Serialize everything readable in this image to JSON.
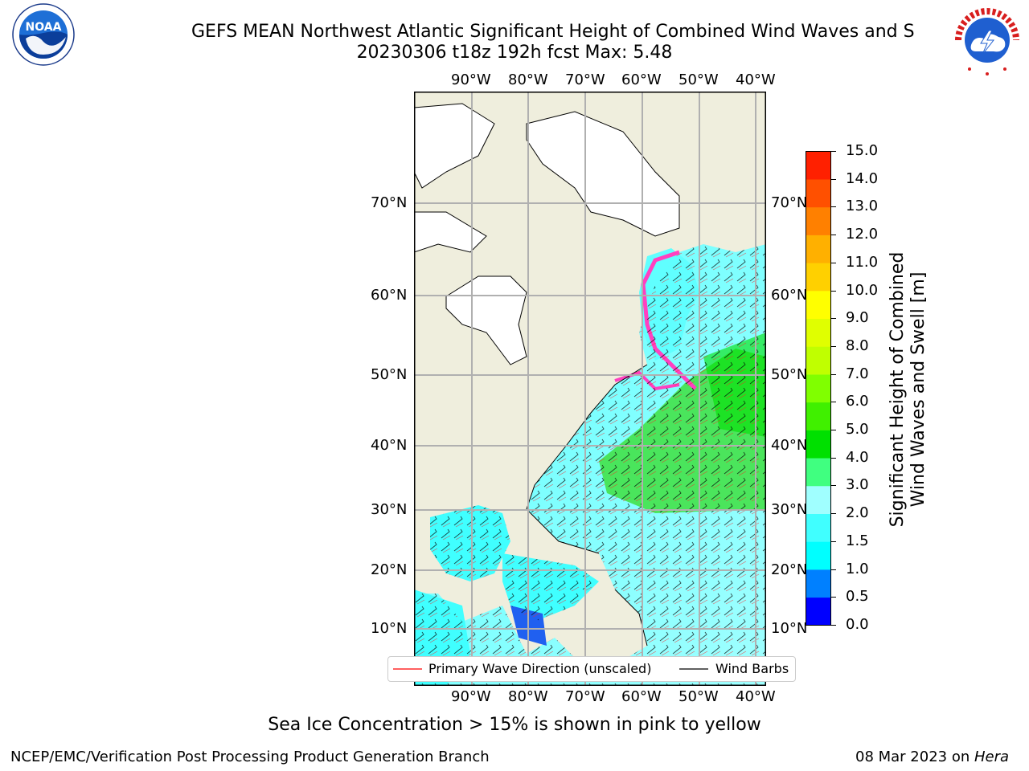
{
  "title_line1": "GEFS MEAN Northwest Atlantic Significant Height of Combined Wind Waves and S",
  "title_line2": "20230306 t18z 192h fcst   Max: 5.48",
  "logos": {
    "noaa_text": "NOAA",
    "noaa_ring": "NATIONAL OCEANIC AND ATMOSPHERIC ADMINISTRATION · U.S. DEPARTMENT OF COMMERCE",
    "nws_ring": "NATIONAL WEATHER SERVICE"
  },
  "lon_ticks": [
    "90°W",
    "80°W",
    "70°W",
    "60°W",
    "50°W",
    "40°W"
  ],
  "lat_ticks": [
    "70°N",
    "60°N",
    "50°N",
    "40°N",
    "30°N",
    "20°N",
    "10°N"
  ],
  "colorbar": {
    "label_line1": "Significant Height of Combined",
    "label_line2": "Wind Waves and Swell [m]",
    "ticks": [
      "15.0",
      "14.0",
      "13.0",
      "12.0",
      "11.0",
      "10.0",
      "9.0",
      "8.0",
      "7.0",
      "6.0",
      "5.0",
      "4.0",
      "3.0",
      "2.0",
      "1.5",
      "1.0",
      "0.5",
      "0.0"
    ],
    "colors_bottom_to_top": [
      "#0000ff",
      "#0080ff",
      "#00ffff",
      "#40ffff",
      "#a0ffff",
      "#40ff80",
      "#00e000",
      "#40f000",
      "#80ff00",
      "#c0ff00",
      "#e0ff00",
      "#ffff00",
      "#ffd000",
      "#ffb000",
      "#ff8000",
      "#ff5000",
      "#ff2000"
    ]
  },
  "legend": {
    "wave_label": "Primary Wave Direction (unscaled)",
    "wind_label": "Wind Barbs",
    "wave_color": "#ff0000",
    "wind_color": "#000000"
  },
  "map_colors": {
    "land": "#efeedd",
    "ice_interior": "#ffffff",
    "ocean_low": "#60ffff",
    "ocean_mid": "#a0ffff",
    "ocean_high": "#40e040",
    "shallow": "#2060f0"
  },
  "footer": {
    "note": "Sea Ice Concentration > 15% is shown in pink to yellow",
    "left": "NCEP/EMC/Verification Post Processing Product Generation Branch",
    "right_prefix": "08 Mar 2023 on ",
    "right_host": "Hera"
  }
}
